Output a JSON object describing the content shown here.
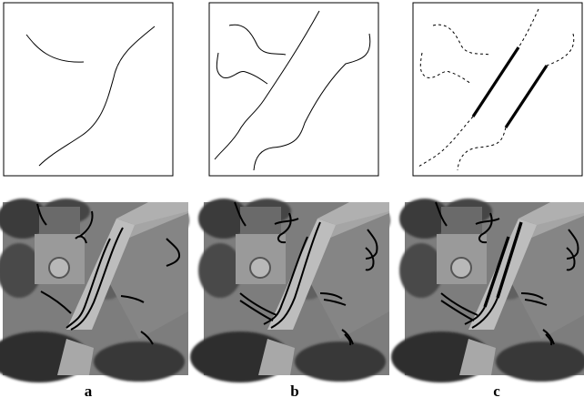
{
  "figure": {
    "panel_labels": [
      "a",
      "b",
      "c"
    ]
  },
  "colors": {
    "ink": "#000000",
    "photo_base": "#7d7d7d",
    "road": "#bdbdbd"
  }
}
